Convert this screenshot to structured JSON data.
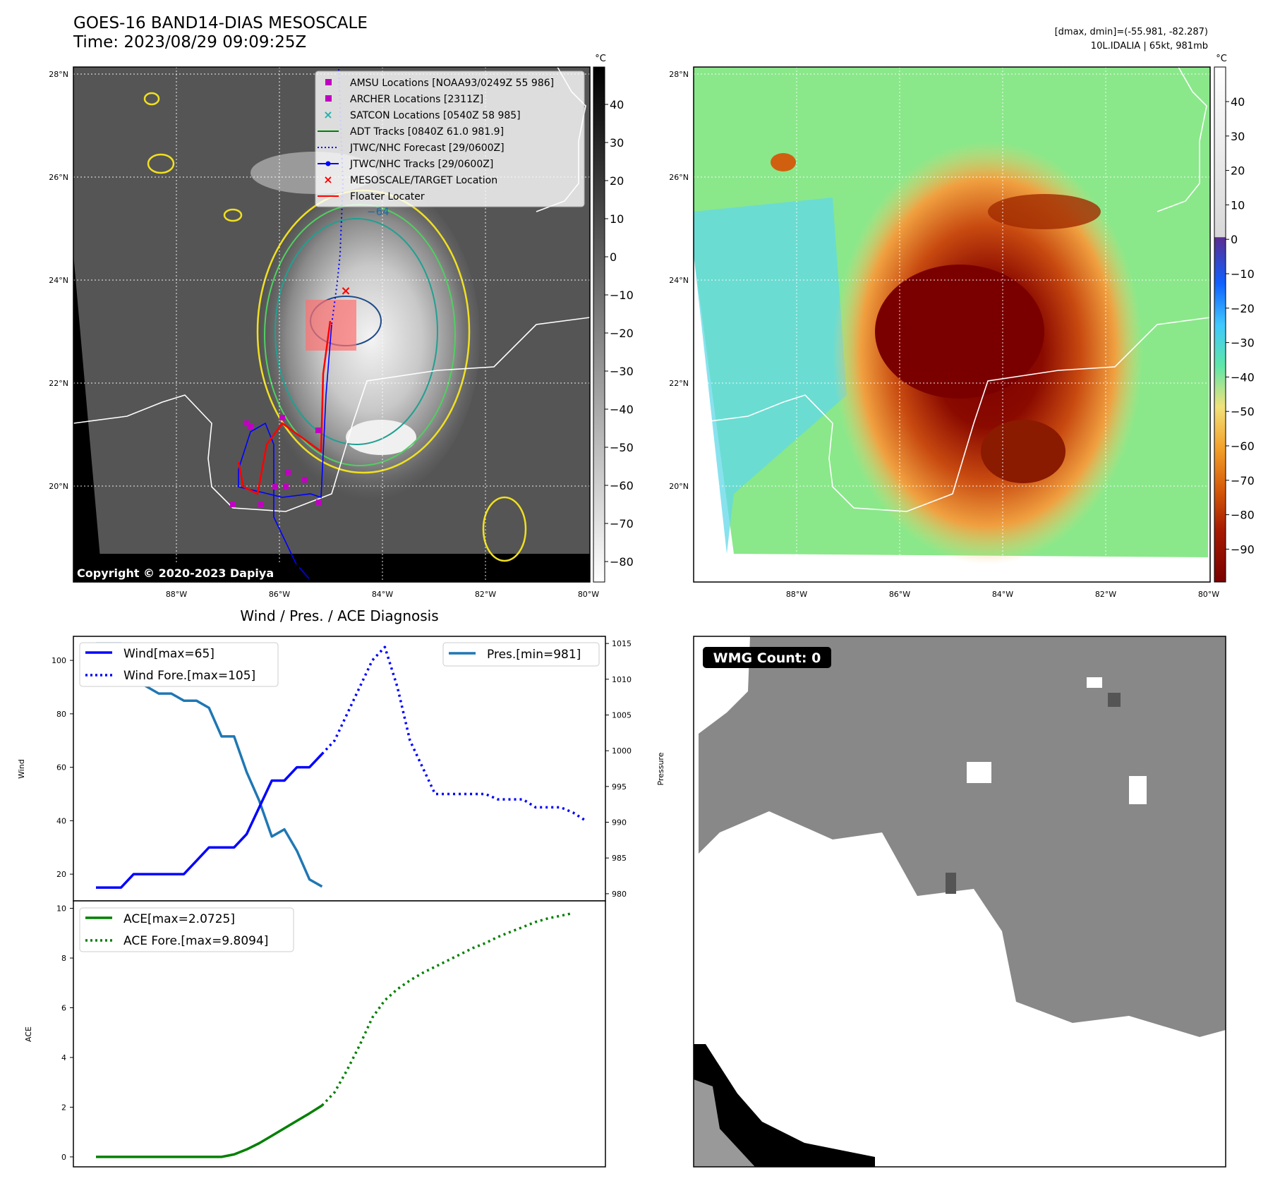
{
  "header": {
    "title": "GOES-16 BAND14-DIAS MESOSCALE",
    "time": "Time: 2023/08/29 09:09:25Z",
    "dmax_dmin": "[dmax, dmin]=(-55.981, -82.287)",
    "storm": "10L.IDALIA | 65kt, 981mb"
  },
  "map_axes": {
    "lat_labels": [
      "28°N",
      "26°N",
      "24°N",
      "22°N",
      "20°N"
    ],
    "lon_labels": [
      "88°W",
      "86°W",
      "84°W",
      "82°W",
      "80°W"
    ]
  },
  "legend": {
    "items": [
      {
        "label": "AMSU Locations [NOAA93/0249Z 55 986]",
        "color": "#c000c0",
        "marker": "square"
      },
      {
        "label": "ARCHER Locations [2311Z]",
        "color": "#c000c0",
        "marker": "square"
      },
      {
        "label": "SATCON Locations [0540Z 58 985]",
        "color": "#20b2aa",
        "marker": "x"
      },
      {
        "label": "ADT Tracks [0840Z 61.0 981.9]",
        "color": "#008000",
        "marker": "line"
      },
      {
        "label": "JTWC/NHC Forecast [29/0600Z]",
        "color": "#0000ff",
        "marker": "dotted"
      },
      {
        "label": "JTWC/NHC Tracks [29/0600Z]",
        "color": "#0000ff",
        "marker": "line-dot"
      },
      {
        "label": "MESOSCALE/TARGET Location",
        "color": "#ff0000",
        "marker": "x"
      },
      {
        "label": "Floater Locater",
        "color": "#ff0000",
        "marker": "line"
      }
    ]
  },
  "colorbar_gray": {
    "unit": "°C",
    "ticks": [
      "40",
      "30",
      "20",
      "10",
      "0",
      "−10",
      "−20",
      "−30",
      "−40",
      "−50",
      "−60",
      "−70",
      "−80"
    ]
  },
  "colorbar_color": {
    "unit": "°C",
    "ticks": [
      "40",
      "30",
      "20",
      "10",
      "0",
      "−10",
      "−20",
      "−30",
      "−40",
      "−50",
      "−60",
      "−70",
      "−80",
      "−90"
    ]
  },
  "contour_label": "−64",
  "copyright": "Copyright © 2020-2023 Dapiya",
  "wmg_badge": "WMG Count: 0",
  "chart_data": [
    {
      "type": "line",
      "title": "Wind / Pres. / ACE Diagnosis",
      "ylabel": "Wind",
      "y2label": "Pressure",
      "ylim": [
        10,
        109
      ],
      "y2lim": [
        979,
        1016
      ],
      "yticks": [
        "100",
        "80",
        "60",
        "40",
        "20"
      ],
      "y2ticks": [
        "1015",
        "1010",
        "1005",
        "1000",
        "995",
        "990",
        "985",
        "980"
      ],
      "series": [
        {
          "name": "Wind[max=65]",
          "color": "#0000ff",
          "style": "solid",
          "axis": "left",
          "values": [
            15,
            15,
            15,
            20,
            20,
            20,
            20,
            20,
            25,
            30,
            30,
            30,
            35,
            45,
            55,
            55,
            60,
            60,
            65
          ]
        },
        {
          "name": "Wind Fore.[max=105]",
          "color": "#0000ff",
          "style": "dotted",
          "axis": "left",
          "values": [
            65,
            70,
            80,
            90,
            100,
            105,
            90,
            70,
            60,
            50,
            50,
            50,
            50,
            50,
            48,
            48,
            48,
            45,
            45,
            45,
            43,
            40
          ]
        },
        {
          "name": "Pres.[min=981]",
          "color": "#1f77b4",
          "style": "solid",
          "axis": "right",
          "values": [
            1015,
            1015,
            1015,
            1010,
            1009,
            1008,
            1008,
            1007,
            1007,
            1006,
            1002,
            1002,
            997,
            993,
            988,
            989,
            986,
            982,
            981
          ]
        }
      ]
    },
    {
      "type": "line",
      "ylabel": "ACE",
      "ylim": [
        -0.4,
        10.3
      ],
      "yticks": [
        "10",
        "8",
        "6",
        "4",
        "2",
        "0"
      ],
      "series": [
        {
          "name": "ACE[max=2.0725]",
          "color": "#008000",
          "style": "solid",
          "values": [
            0,
            0,
            0,
            0,
            0,
            0,
            0,
            0,
            0,
            0,
            0,
            0.1,
            0.3,
            0.55,
            0.85,
            1.15,
            1.45,
            1.75,
            2.07
          ]
        },
        {
          "name": "ACE Fore.[max=9.8094]",
          "color": "#008000",
          "style": "dotted",
          "values": [
            2.07,
            2.6,
            3.5,
            4.5,
            5.6,
            6.3,
            6.75,
            7.1,
            7.4,
            7.65,
            7.9,
            8.15,
            8.4,
            8.6,
            8.85,
            9.05,
            9.25,
            9.45,
            9.6,
            9.7,
            9.81
          ]
        }
      ]
    }
  ]
}
